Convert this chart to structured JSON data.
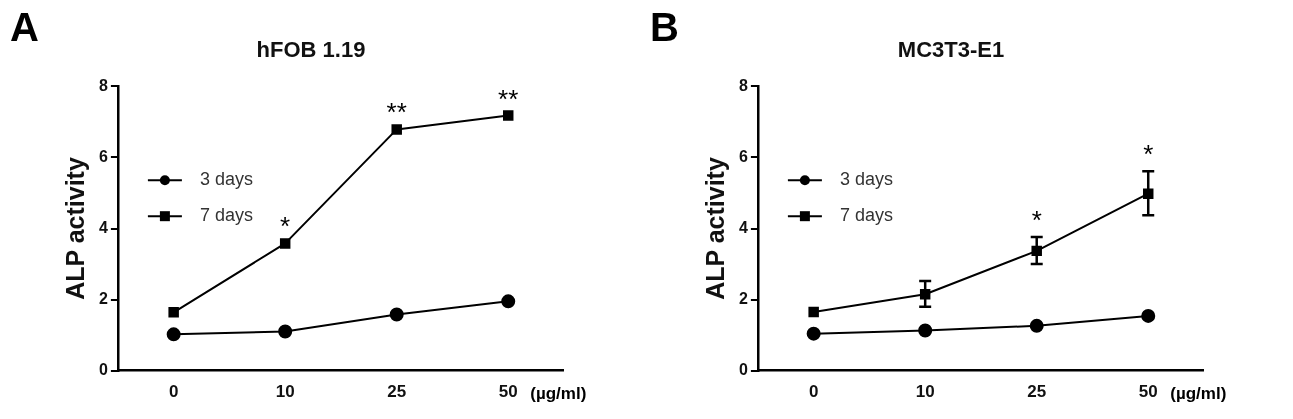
{
  "chart_data": [
    {
      "type": "line",
      "title": "hFOB 1.19",
      "xlabel": "(µg/ml)",
      "ylabel": "ALP activity",
      "categories": [
        "0",
        "10",
        "25",
        "50"
      ],
      "series": [
        {
          "name": "3 days",
          "color": "#000000",
          "marker": "circle",
          "values": [
            1.02,
            1.1,
            1.58,
            1.95
          ]
        },
        {
          "name": "7 days",
          "color": "#000000",
          "marker": "square",
          "values": [
            1.64,
            3.58,
            6.79,
            7.18
          ]
        }
      ],
      "ylim": [
        0,
        8
      ],
      "yticks": [
        0,
        2,
        4,
        6,
        8
      ],
      "grid": false,
      "legend": "left",
      "annotations": [
        "A",
        {
          "text": "*",
          "x": "10",
          "y": 3.58
        },
        {
          "text": "**",
          "x": "25",
          "y": 6.79
        },
        {
          "text": "**",
          "x": "50",
          "y": 7.18
        }
      ]
    },
    {
      "type": "line",
      "title": "MC3T3-E1",
      "xlabel": "(µg/ml)",
      "ylabel": "ALP activity",
      "categories": [
        "0",
        "10",
        "25",
        "50"
      ],
      "series": [
        {
          "name": "3 days",
          "color": "#000000",
          "marker": "circle",
          "values": [
            1.04,
            1.13,
            1.26,
            1.54
          ]
        },
        {
          "name": "7 days",
          "color": "#000000",
          "marker": "square",
          "values": [
            1.65,
            2.15,
            3.37,
            4.98
          ],
          "errors": [
            null,
            [
              1.8,
              2.52
            ],
            [
              3.0,
              3.76
            ],
            [
              4.37,
              5.61
            ]
          ]
        }
      ],
      "ylim": [
        0,
        8
      ],
      "yticks": [
        0,
        2,
        4,
        6,
        8
      ],
      "grid": false,
      "legend": "left",
      "annotations": [
        "B",
        {
          "text": "*",
          "x": "25",
          "y": 3.76
        },
        {
          "text": "*",
          "x": "50",
          "y": 5.61
        }
      ]
    }
  ]
}
